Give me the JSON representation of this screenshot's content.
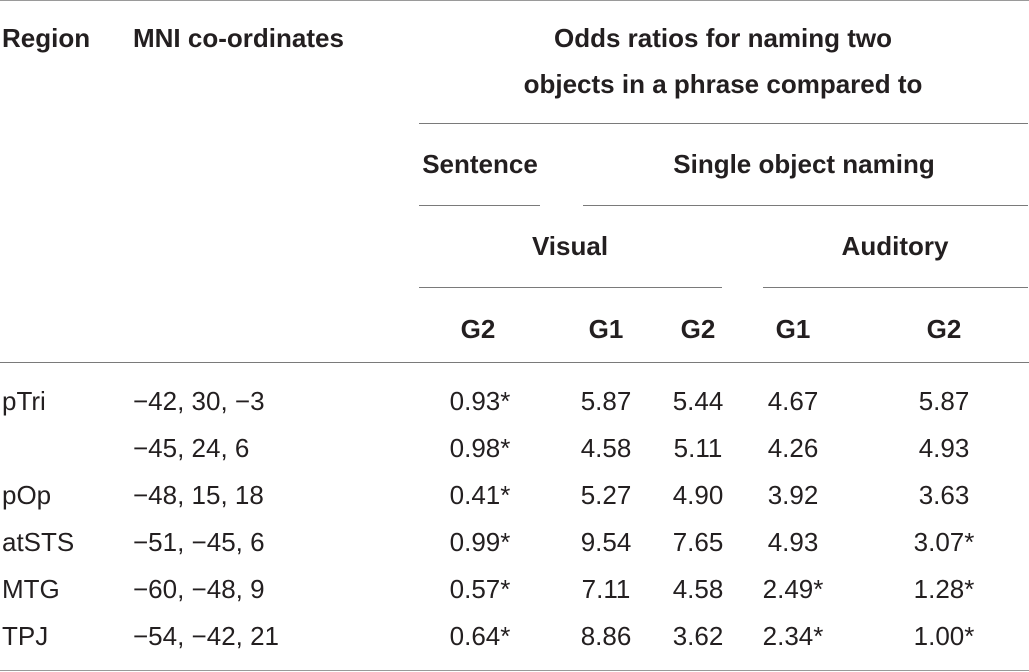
{
  "table": {
    "header": {
      "region": "Region",
      "mni": "MNI co-ordinates",
      "odds_line1": "Odds ratios for naming two",
      "odds_line2": "objects in a phrase compared to",
      "sentence": "Sentence",
      "single": "Single object naming",
      "visual": "Visual",
      "auditory": "Auditory",
      "cols": [
        "G2",
        "G1",
        "G2",
        "G1",
        "G2"
      ]
    },
    "rows": [
      {
        "region": "pTri",
        "mni": "−42, 30, −3",
        "values": [
          "0.93*",
          "5.87",
          "5.44",
          "4.67",
          "5.87"
        ]
      },
      {
        "region": "",
        "mni": "−45, 24, 6",
        "values": [
          "0.98*",
          "4.58",
          "5.11",
          "4.26",
          "4.93"
        ]
      },
      {
        "region": "pOp",
        "mni": "−48, 15, 18",
        "values": [
          "0.41*",
          "5.27",
          "4.90",
          "3.92",
          "3.63"
        ]
      },
      {
        "region": "atSTS",
        "mni": "−51, −45, 6",
        "values": [
          "0.99*",
          "9.54",
          "7.65",
          "4.93",
          "3.07*"
        ]
      },
      {
        "region": "MTG",
        "mni": "−60, −48, 9",
        "values": [
          "0.57*",
          "7.11",
          "4.58",
          "2.49*",
          "1.28*"
        ]
      },
      {
        "region": "TPJ",
        "mni": "−54, −42, 21",
        "values": [
          "0.64*",
          "8.86",
          "3.62",
          "2.34*",
          "1.00*"
        ]
      }
    ]
  }
}
